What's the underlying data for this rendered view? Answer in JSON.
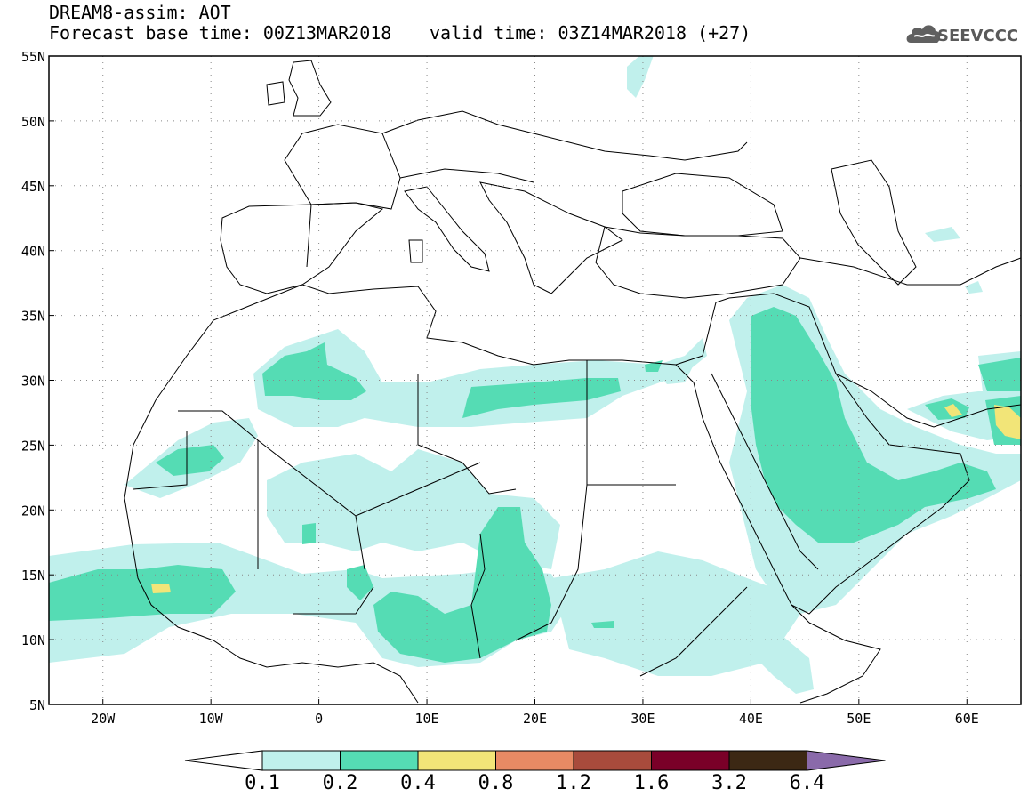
{
  "header": {
    "title": "DREAM8-assim: AOT",
    "base_time": "Forecast base time: 00Z13MAR2018",
    "valid_time": "valid time: 03Z14MAR2018 (+27)"
  },
  "logo": {
    "text": "SEEVCCC",
    "icon": "cloud-icon"
  },
  "map": {
    "lon_range": [
      -25,
      65
    ],
    "lat_range": [
      5,
      55
    ],
    "lat_labels": [
      "55N",
      "50N",
      "45N",
      "40N",
      "35N",
      "30N",
      "25N",
      "20N",
      "15N",
      "10N",
      "5N"
    ],
    "lat_values": [
      55,
      50,
      45,
      40,
      35,
      30,
      25,
      20,
      15,
      10,
      5
    ],
    "lon_labels": [
      "20W",
      "10W",
      "0",
      "10E",
      "20E",
      "30E",
      "40E",
      "50E",
      "60E"
    ],
    "lon_values": [
      -20,
      -10,
      0,
      10,
      20,
      30,
      40,
      50,
      60
    ],
    "grid": true
  },
  "legend": {
    "levels": [
      "0.1",
      "0.2",
      "0.4",
      "0.8",
      "1.2",
      "1.6",
      "3.2",
      "6.4"
    ],
    "colors": [
      "#ffffff",
      "#c0f0ec",
      "#55dcb4",
      "#f2e578",
      "#e88a64",
      "#a84b3c",
      "#7a0028",
      "#3c2814",
      "#8a6aaa"
    ]
  }
}
